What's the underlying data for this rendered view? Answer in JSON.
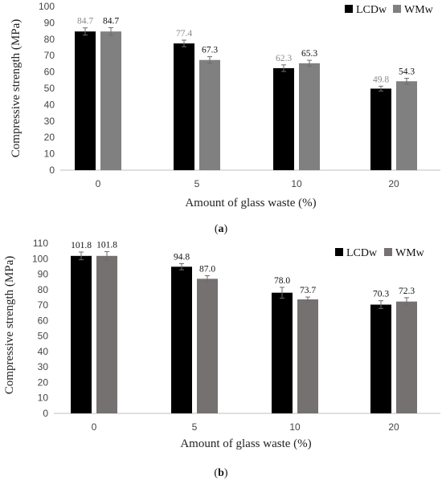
{
  "chart_data": [
    {
      "type": "bar",
      "caption": "(a)",
      "caption_letter": "a",
      "categories": [
        "0",
        "5",
        "10",
        "20"
      ],
      "series": [
        {
          "name": "LCDw",
          "values": [
            84.7,
            77.4,
            62.3,
            49.8
          ],
          "labels": [
            "84.7",
            "77.4",
            "62.3",
            "49.8"
          ],
          "errors": [
            2.2,
            2.0,
            2.0,
            1.5
          ],
          "color": "#000000",
          "label_color": "#8a8a8a"
        },
        {
          "name": "WMw",
          "values": [
            84.7,
            67.3,
            65.3,
            54.3
          ],
          "labels": [
            "84.7",
            "67.3",
            "65.3",
            "54.3"
          ],
          "errors": [
            2.3,
            2.0,
            1.8,
            1.8
          ],
          "color": "#808080",
          "label_color": "#111111"
        }
      ],
      "xlabel": "Amount of glass waste (%)",
      "ylabel": "Compressive strength (MPa)",
      "ylim": [
        0,
        100
      ],
      "yticks": [
        "0",
        "10",
        "20",
        "30",
        "40",
        "50",
        "60",
        "70",
        "80",
        "90",
        "100"
      ],
      "legend": "top-right",
      "grid": false
    },
    {
      "type": "bar",
      "caption": "(b)",
      "caption_letter": "b",
      "categories": [
        "0",
        "5",
        "10",
        "20"
      ],
      "series": [
        {
          "name": "LCDw",
          "values": [
            101.8,
            94.8,
            78.0,
            70.3
          ],
          "labels": [
            "101.8",
            "94.8",
            "78.0",
            "70.3"
          ],
          "errors": [
            2.5,
            2.0,
            3.5,
            2.5
          ],
          "color": "#000000",
          "label_color": "#111111"
        },
        {
          "name": "WMw",
          "values": [
            101.8,
            87.0,
            73.7,
            72.3
          ],
          "labels": [
            "101.8",
            "87.0",
            "73.7",
            "72.3"
          ],
          "errors": [
            2.8,
            2.0,
            1.5,
            2.5
          ],
          "color": "#767171",
          "label_color": "#111111"
        }
      ],
      "xlabel": "Amount of glass waste (%)",
      "ylabel": "Compressive strength (MPa)",
      "ylim": [
        0,
        110
      ],
      "yticks": [
        "0",
        "10",
        "20",
        "30",
        "40",
        "50",
        "60",
        "70",
        "80",
        "90",
        "100",
        "110"
      ],
      "legend": "top-right",
      "grid": false
    }
  ]
}
